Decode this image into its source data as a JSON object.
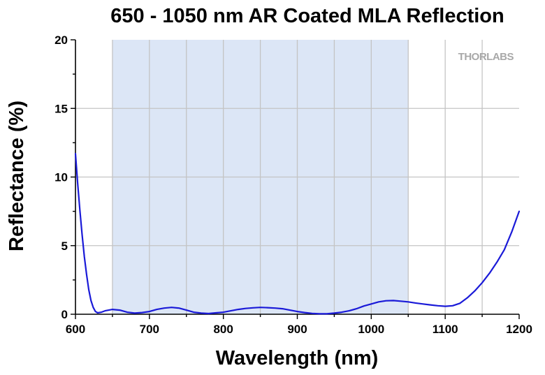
{
  "chart_data": {
    "type": "line",
    "title": "650 - 1050 nm AR Coated MLA Reflection",
    "xlabel": "Wavelength (nm)",
    "ylabel": "Reflectance (%)",
    "xlim": [
      600,
      1200
    ],
    "ylim": [
      0,
      20
    ],
    "xticks": [
      600,
      700,
      800,
      900,
      1000,
      1100,
      1200
    ],
    "yticks": [
      0,
      5,
      10,
      15,
      20
    ],
    "grid": true,
    "shaded_band": {
      "from": 650,
      "to": 1050,
      "color": "#dce6f6"
    },
    "line_color": "#1a1ad8",
    "logo": "THORLABS",
    "series": [
      {
        "x": [
          600,
          603,
          606,
          609,
          612,
          615,
          618,
          621,
          624,
          627,
          630,
          635,
          640,
          650,
          660,
          670,
          680,
          690,
          700,
          710,
          720,
          730,
          740,
          750,
          760,
          770,
          780,
          790,
          800,
          810,
          820,
          830,
          840,
          850,
          860,
          870,
          880,
          890,
          900,
          910,
          920,
          930,
          940,
          950,
          960,
          970,
          980,
          990,
          1000,
          1010,
          1020,
          1030,
          1040,
          1050,
          1060,
          1070,
          1080,
          1090,
          1100,
          1110,
          1120,
          1130,
          1140,
          1150,
          1160,
          1170,
          1180,
          1190,
          1200
        ],
        "y": [
          11.7,
          9.5,
          7.6,
          5.8,
          4.2,
          2.9,
          1.8,
          1.0,
          0.5,
          0.2,
          0.1,
          0.15,
          0.25,
          0.35,
          0.3,
          0.15,
          0.08,
          0.12,
          0.2,
          0.35,
          0.45,
          0.5,
          0.45,
          0.3,
          0.15,
          0.08,
          0.05,
          0.1,
          0.15,
          0.25,
          0.35,
          0.42,
          0.47,
          0.5,
          0.48,
          0.45,
          0.4,
          0.3,
          0.2,
          0.12,
          0.06,
          0.03,
          0.03,
          0.08,
          0.15,
          0.25,
          0.4,
          0.6,
          0.75,
          0.9,
          0.98,
          1.0,
          0.95,
          0.9,
          0.82,
          0.75,
          0.68,
          0.62,
          0.58,
          0.62,
          0.8,
          1.2,
          1.7,
          2.3,
          3.0,
          3.8,
          4.7,
          6.0,
          7.5
        ]
      }
    ]
  }
}
